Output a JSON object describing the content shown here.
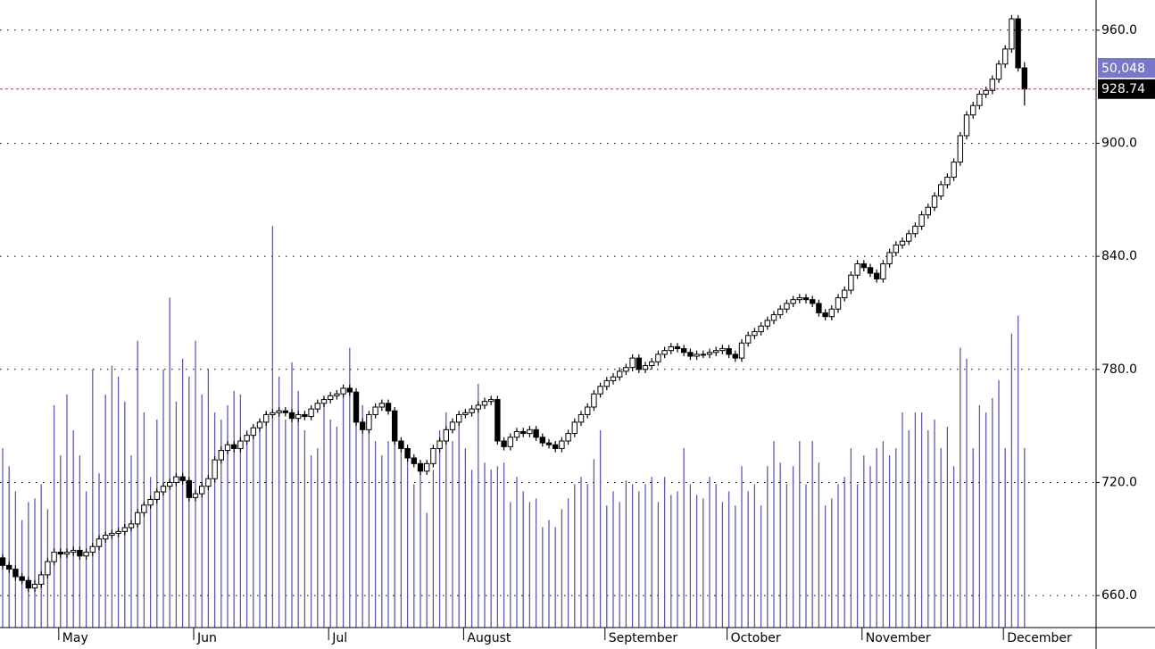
{
  "chart_data": {
    "type": "candlestick",
    "categories": [
      null,
      null,
      null,
      null,
      null,
      null,
      null,
      null,
      null,
      "May",
      null,
      null,
      null,
      null,
      null,
      null,
      null,
      null,
      null,
      null,
      null,
      null,
      null,
      null,
      null,
      null,
      null,
      null,
      null,
      null,
      "Jun",
      null,
      null,
      null,
      null,
      null,
      null,
      null,
      null,
      null,
      null,
      null,
      null,
      null,
      null,
      null,
      null,
      null,
      null,
      null,
      null,
      "Jul",
      null,
      null,
      null,
      null,
      null,
      null,
      null,
      null,
      null,
      null,
      null,
      null,
      null,
      null,
      null,
      null,
      null,
      null,
      null,
      null,
      "August",
      null,
      null,
      null,
      null,
      null,
      null,
      null,
      null,
      null,
      null,
      null,
      null,
      null,
      null,
      null,
      null,
      null,
      null,
      null,
      null,
      null,
      "September",
      null,
      null,
      null,
      null,
      null,
      null,
      null,
      null,
      null,
      null,
      null,
      null,
      null,
      null,
      null,
      null,
      null,
      null,
      "October",
      null,
      null,
      null,
      null,
      null,
      null,
      null,
      null,
      null,
      null,
      null,
      null,
      null,
      null,
      null,
      null,
      null,
      null,
      null,
      null,
      "November",
      null,
      null,
      null,
      null,
      null,
      null,
      null,
      null,
      null,
      null,
      null,
      null,
      null,
      null,
      null,
      null,
      null,
      null,
      null,
      null,
      null,
      "December",
      null,
      null,
      null
    ],
    "open": [
      680,
      676,
      674,
      670,
      668,
      664,
      666,
      671,
      678,
      683,
      682,
      683,
      684,
      681,
      683,
      686,
      690,
      692,
      693,
      694,
      696,
      698,
      704,
      708,
      711,
      715,
      718,
      720,
      723,
      721,
      712,
      714,
      718,
      722,
      732,
      737,
      740,
      738,
      742,
      745,
      749,
      752,
      756,
      757,
      758,
      757,
      754,
      756,
      755,
      759,
      762,
      764,
      766,
      767,
      770,
      768,
      752,
      748,
      756,
      760,
      762,
      758,
      742,
      738,
      733,
      730,
      726,
      730,
      738,
      742,
      748,
      752,
      756,
      757,
      759,
      761,
      763,
      764,
      742,
      739,
      744,
      747,
      746,
      748,
      744,
      741,
      740,
      738,
      742,
      746,
      752,
      756,
      760,
      767,
      771,
      774,
      776,
      779,
      781,
      786,
      780,
      782,
      784,
      788,
      790,
      792,
      791,
      789,
      787,
      788,
      788,
      789,
      790,
      791,
      788,
      786,
      794,
      798,
      800,
      803,
      806,
      809,
      812,
      815,
      817,
      818,
      817,
      815,
      810,
      808,
      812,
      818,
      822,
      830,
      836,
      834,
      831,
      828,
      836,
      842,
      846,
      848,
      852,
      856,
      862,
      866,
      872,
      878,
      882,
      890,
      904,
      915,
      920,
      926,
      928,
      934,
      942,
      950,
      966,
      940
    ],
    "high": [
      682,
      678,
      676,
      672,
      670,
      668,
      673,
      680,
      685,
      685,
      685,
      686,
      686,
      685,
      688,
      692,
      694,
      695,
      696,
      698,
      700,
      706,
      710,
      713,
      717,
      720,
      722,
      725,
      725,
      723,
      716,
      720,
      724,
      734,
      739,
      742,
      742,
      744,
      747,
      751,
      754,
      758,
      759,
      760,
      760,
      759,
      758,
      758,
      761,
      764,
      766,
      768,
      769,
      772,
      772,
      770,
      754,
      758,
      762,
      764,
      764,
      760,
      744,
      740,
      735,
      732,
      732,
      740,
      744,
      750,
      754,
      758,
      759,
      761,
      763,
      765,
      766,
      766,
      744,
      746,
      749,
      749,
      750,
      750,
      746,
      743,
      742,
      744,
      748,
      754,
      758,
      762,
      769,
      773,
      776,
      778,
      781,
      783,
      788,
      788,
      784,
      786,
      790,
      792,
      794,
      794,
      793,
      791,
      790,
      790,
      791,
      792,
      793,
      793,
      790,
      796,
      800,
      802,
      805,
      808,
      811,
      814,
      817,
      819,
      820,
      820,
      819,
      817,
      812,
      814,
      820,
      824,
      832,
      838,
      838,
      836,
      833,
      838,
      844,
      848,
      850,
      854,
      858,
      864,
      868,
      874,
      880,
      884,
      892,
      906,
      917,
      922,
      928,
      930,
      936,
      944,
      952,
      968,
      968,
      943
    ],
    "low": [
      674,
      672,
      668,
      666,
      662,
      662,
      664,
      669,
      676,
      680,
      680,
      681,
      679,
      679,
      681,
      684,
      688,
      690,
      691,
      692,
      694,
      696,
      702,
      706,
      709,
      713,
      716,
      718,
      719,
      710,
      710,
      712,
      716,
      720,
      730,
      735,
      736,
      736,
      740,
      743,
      747,
      750,
      754,
      755,
      755,
      752,
      752,
      753,
      753,
      757,
      760,
      762,
      764,
      765,
      766,
      750,
      746,
      746,
      754,
      758,
      756,
      740,
      736,
      731,
      728,
      724,
      724,
      728,
      736,
      740,
      746,
      750,
      754,
      755,
      757,
      759,
      761,
      740,
      737,
      737,
      742,
      744,
      744,
      742,
      739,
      738,
      736,
      736,
      740,
      744,
      750,
      754,
      758,
      765,
      769,
      772,
      774,
      777,
      779,
      778,
      778,
      780,
      782,
      786,
      788,
      789,
      787,
      785,
      785,
      786,
      786,
      787,
      788,
      786,
      784,
      784,
      792,
      796,
      798,
      801,
      804,
      807,
      810,
      813,
      815,
      815,
      813,
      808,
      806,
      806,
      810,
      816,
      820,
      828,
      832,
      829,
      826,
      826,
      834,
      840,
      844,
      846,
      850,
      854,
      860,
      864,
      870,
      876,
      880,
      888,
      902,
      913,
      918,
      924,
      926,
      932,
      940,
      948,
      938,
      920
    ],
    "close": [
      676,
      674,
      670,
      668,
      664,
      666,
      671,
      678,
      683,
      682,
      683,
      684,
      681,
      683,
      686,
      690,
      692,
      693,
      694,
      696,
      698,
      704,
      708,
      711,
      715,
      718,
      720,
      723,
      721,
      712,
      714,
      718,
      722,
      732,
      737,
      740,
      738,
      742,
      745,
      749,
      752,
      756,
      757,
      758,
      757,
      754,
      756,
      755,
      759,
      762,
      764,
      766,
      767,
      770,
      768,
      752,
      748,
      756,
      760,
      762,
      758,
      742,
      738,
      733,
      730,
      726,
      730,
      738,
      742,
      748,
      752,
      756,
      757,
      759,
      761,
      763,
      764,
      742,
      739,
      744,
      747,
      746,
      748,
      744,
      741,
      740,
      738,
      742,
      746,
      752,
      756,
      760,
      767,
      771,
      774,
      776,
      779,
      781,
      786,
      780,
      782,
      784,
      788,
      790,
      792,
      791,
      789,
      787,
      788,
      788,
      789,
      790,
      791,
      788,
      786,
      794,
      798,
      800,
      803,
      806,
      809,
      812,
      815,
      817,
      818,
      817,
      815,
      810,
      808,
      812,
      818,
      822,
      830,
      836,
      834,
      831,
      828,
      836,
      842,
      846,
      848,
      852,
      856,
      862,
      866,
      872,
      878,
      882,
      890,
      904,
      915,
      920,
      926,
      928,
      934,
      942,
      950,
      966,
      940,
      928.74
    ],
    "volume": {
      "color": "#5a5ab4",
      "label_color": "#7878c8",
      "values": [
        50000,
        45000,
        38000,
        30000,
        35000,
        36000,
        40000,
        33000,
        62000,
        48000,
        65000,
        55000,
        48000,
        38000,
        72000,
        43000,
        65000,
        73000,
        70000,
        63000,
        48000,
        80000,
        60000,
        42000,
        58000,
        72000,
        92000,
        63000,
        75000,
        70000,
        80000,
        65000,
        72000,
        60000,
        58000,
        62000,
        66000,
        65000,
        55000,
        54000,
        58000,
        60000,
        112000,
        70000,
        58000,
        74000,
        66000,
        55000,
        48000,
        50000,
        64000,
        58000,
        56000,
        66000,
        78000,
        60000,
        62000,
        55000,
        52000,
        48000,
        52000,
        58000,
        50000,
        48000,
        40000,
        45000,
        32000,
        44000,
        55000,
        60000,
        52000,
        58000,
        50000,
        44000,
        68000,
        46000,
        44000,
        45000,
        46000,
        35000,
        42000,
        38000,
        35000,
        36000,
        28000,
        30000,
        28000,
        33000,
        36000,
        40000,
        42000,
        40000,
        47000,
        55000,
        34000,
        38000,
        35000,
        41000,
        40000,
        38000,
        40000,
        42000,
        35000,
        42000,
        37000,
        38000,
        50000,
        40000,
        37000,
        36000,
        42000,
        40000,
        35000,
        38000,
        34000,
        45000,
        38000,
        40000,
        34000,
        45000,
        52000,
        46000,
        40000,
        45000,
        52000,
        40000,
        52000,
        46000,
        34000,
        36000,
        40000,
        42000,
        50000,
        40000,
        48000,
        45000,
        50000,
        52000,
        48000,
        50000,
        60000,
        55000,
        60000,
        60000,
        55000,
        58000,
        50000,
        56000,
        45000,
        78000,
        75000,
        50000,
        62000,
        60000,
        64000,
        69000,
        50000,
        82000,
        87000,
        {
          "value": 50048,
          "label": "50,048"
        }
      ]
    },
    "volume_lim": [
      0,
      175000
    ],
    "ylim": [
      643,
      976
    ],
    "yticks": [
      {
        "value": 660,
        "label": "660.0"
      },
      {
        "value": 720,
        "label": "720.0"
      },
      {
        "value": 780,
        "label": "780.0"
      },
      {
        "value": 840,
        "label": "840.0"
      },
      {
        "value": 900,
        "label": "900.0"
      },
      {
        "value": 960,
        "label": "960.0"
      }
    ],
    "grid": true,
    "up_color": "#ffffff",
    "down_color": "#000000",
    "last_price_line_color": "#e02020"
  }
}
